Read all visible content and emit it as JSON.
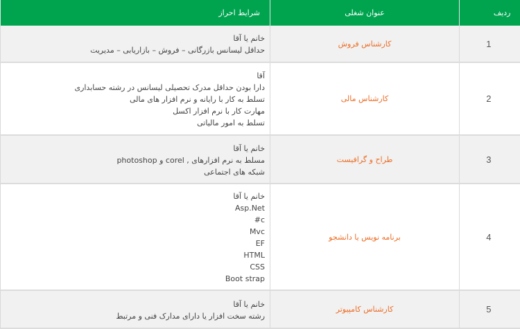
{
  "header": {
    "row": "ردیف",
    "job_title": "عنوان شغلی",
    "requirements": "شرایط احراز"
  },
  "colors": {
    "header": "#00a44f",
    "title": "#ec6d26",
    "stripe": "#f1f1f1"
  },
  "rows": [
    {
      "num": "1",
      "title": "کارشناس فروش",
      "req": [
        "خانم یا آقا",
        "حداقل لیسانس بازرگانی – فروش – بازاریابی – مدیریت"
      ]
    },
    {
      "num": "2",
      "title": "کارشناس مالی",
      "req": [
        "آقا",
        "دارا بودن حداقل مدرک تحصیلی لیسانس در رشته حسابداری",
        "تسلط به کار با رایانه و نرم افزار های مالی",
        "مهارت کار با نرم افزار اکسل",
        "تسلط به امور مالیاتی"
      ]
    },
    {
      "num": "3",
      "title": "طراح و گرافیست",
      "req": [
        "خانم یا آقا",
        "مسلط به نرم افزارهای , corel و photoshop",
        "شبکه های اجتماعی"
      ]
    },
    {
      "num": "4",
      "title": "برنامه نویس یا دانشجو",
      "req": [
        "خانم یا آقا",
        "Asp.Net",
        "#c",
        "Mvc",
        "EF",
        "HTML",
        "CSS",
        "Boot strap"
      ]
    },
    {
      "num": "5",
      "title": "کارشناس کامپیوتر",
      "req": [
        "خانم یا آقا",
        "رشته سخت افزار یا دارای مدارک فنی و مرتبط"
      ]
    }
  ]
}
